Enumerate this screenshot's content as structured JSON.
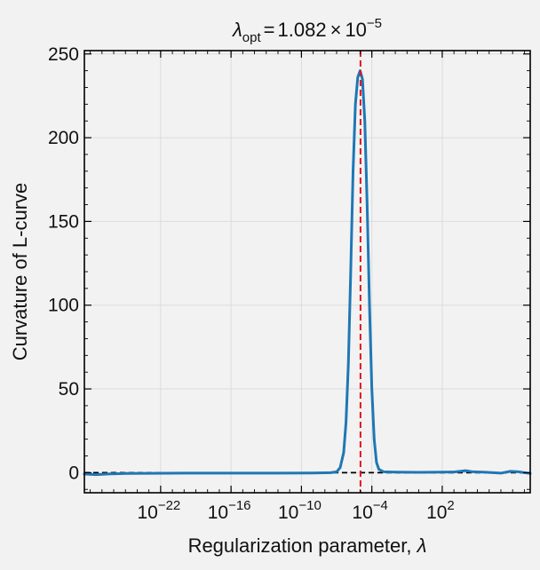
{
  "chart_data": {
    "type": "line",
    "title": {
      "symbol": "λ",
      "subscript": "opt",
      "equals": "=",
      "mantissa": "1.082",
      "times": "×",
      "base": "10",
      "exponent": "−5"
    },
    "xlabel": "Regularization parameter, ",
    "xlabel_symbol": "λ",
    "ylabel": "Curvature of L-curve",
    "x_scale": "log10",
    "xlim_log10": [
      -28.5,
      9.5
    ],
    "ylim": [
      -12,
      252
    ],
    "x_ticks": [
      {
        "base": "10",
        "exp": "−22",
        "log10": -22
      },
      {
        "base": "10",
        "exp": "−16",
        "log10": -16
      },
      {
        "base": "10",
        "exp": "−10",
        "log10": -10
      },
      {
        "base": "10",
        "exp": "−4",
        "log10": -4
      },
      {
        "base": "10",
        "exp": "2",
        "log10": 2
      }
    ],
    "y_ticks": [
      0,
      50,
      100,
      150,
      200,
      250
    ],
    "grid": true,
    "series": [
      {
        "color": "#1f77b4",
        "points_log10x_y": [
          [
            -28.5,
            -0.8
          ],
          [
            -27.5,
            -1.2
          ],
          [
            -26.5,
            -0.8
          ],
          [
            -25,
            -0.5
          ],
          [
            -23,
            -0.4
          ],
          [
            -20,
            -0.3
          ],
          [
            -16,
            -0.3
          ],
          [
            -12,
            -0.3
          ],
          [
            -9,
            -0.2
          ],
          [
            -7.5,
            0.0
          ],
          [
            -7.0,
            0.5
          ],
          [
            -6.7,
            3
          ],
          [
            -6.4,
            12
          ],
          [
            -6.2,
            30
          ],
          [
            -6.0,
            65
          ],
          [
            -5.8,
            120
          ],
          [
            -5.6,
            180
          ],
          [
            -5.4,
            220
          ],
          [
            -5.2,
            236
          ],
          [
            -5.0,
            240
          ],
          [
            -4.8,
            235
          ],
          [
            -4.6,
            210
          ],
          [
            -4.4,
            160
          ],
          [
            -4.2,
            100
          ],
          [
            -4.0,
            50
          ],
          [
            -3.8,
            20
          ],
          [
            -3.6,
            6
          ],
          [
            -3.4,
            2
          ],
          [
            -3.0,
            0.5
          ],
          [
            -2,
            0.3
          ],
          [
            0,
            0.2
          ],
          [
            2,
            0.3
          ],
          [
            3,
            0.4
          ],
          [
            4,
            1.2
          ],
          [
            4.6,
            0.5
          ],
          [
            5.5,
            0.3
          ],
          [
            7,
            -0.3
          ],
          [
            7.8,
            0.8
          ],
          [
            8.5,
            0.5
          ],
          [
            9.5,
            -0.5
          ]
        ]
      }
    ],
    "vertical_line": {
      "log10x": -4.966,
      "color": "#e0161c",
      "style": "dashed"
    },
    "horizontal_line": {
      "y": 0,
      "color": "#000000",
      "style": "dashed"
    }
  }
}
